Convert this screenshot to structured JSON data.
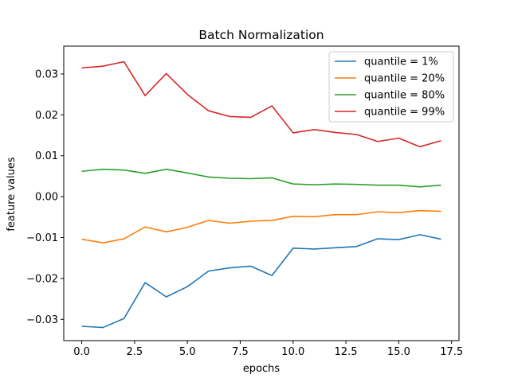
{
  "chart_data": {
    "type": "line",
    "title": "Batch Normalization",
    "xlabel": "epochs",
    "ylabel": "feature values",
    "xlim": [
      -0.85,
      17.85
    ],
    "ylim": [
      -0.0352,
      0.0368
    ],
    "xticks": [
      0.0,
      2.5,
      5.0,
      7.5,
      10.0,
      12.5,
      15.0,
      17.5
    ],
    "xtick_labels": [
      "0.0",
      "2.5",
      "5.0",
      "7.5",
      "10.0",
      "12.5",
      "15.0",
      "17.5"
    ],
    "yticks": [
      -0.03,
      -0.02,
      -0.01,
      0.0,
      0.01,
      0.02,
      0.03
    ],
    "ytick_labels": [
      "−0.03",
      "−0.02",
      "−0.01",
      "0.00",
      "0.01",
      "0.02",
      "0.03"
    ],
    "grid": false,
    "legend_position": "top-right",
    "x": [
      0,
      1,
      2,
      3,
      4,
      5,
      6,
      7,
      8,
      9,
      10,
      11,
      12,
      13,
      14,
      15,
      16,
      17
    ],
    "series": [
      {
        "name": "quantile = 1%",
        "color": "#1f77b4",
        "values": [
          -0.0317,
          -0.032,
          -0.0298,
          -0.021,
          -0.0245,
          -0.022,
          -0.0182,
          -0.0174,
          -0.017,
          -0.0193,
          -0.0126,
          -0.0128,
          -0.0125,
          -0.0122,
          -0.0103,
          -0.0105,
          -0.0093,
          -0.0104
        ]
      },
      {
        "name": "quantile = 20%",
        "color": "#ff7f0e",
        "values": [
          -0.0104,
          -0.0113,
          -0.0103,
          -0.0074,
          -0.0086,
          -0.0075,
          -0.0058,
          -0.0065,
          -0.006,
          -0.0058,
          -0.0048,
          -0.0049,
          -0.0044,
          -0.0044,
          -0.0037,
          -0.0039,
          -0.0034,
          -0.0036
        ]
      },
      {
        "name": "quantile = 80%",
        "color": "#2ca02c",
        "values": [
          0.0062,
          0.0067,
          0.0065,
          0.0057,
          0.0067,
          0.0058,
          0.0048,
          0.0045,
          0.0044,
          0.0046,
          0.0031,
          0.0029,
          0.0031,
          0.003,
          0.0028,
          0.0028,
          0.0024,
          0.0028
        ]
      },
      {
        "name": "quantile = 99%",
        "color": "#d62728",
        "values": [
          0.0315,
          0.0319,
          0.033,
          0.0247,
          0.0301,
          0.025,
          0.021,
          0.0196,
          0.0194,
          0.0222,
          0.0156,
          0.0164,
          0.0157,
          0.0152,
          0.0135,
          0.0143,
          0.0122,
          0.0137
        ]
      }
    ]
  }
}
